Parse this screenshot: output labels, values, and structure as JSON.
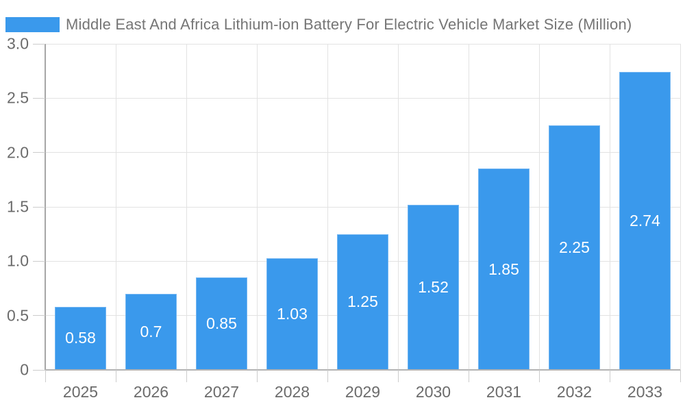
{
  "chart_data": {
    "type": "bar",
    "title": "Middle East And Africa Lithium-ion Battery For Electric Vehicle Market Size (Million)",
    "categories": [
      "2025",
      "2026",
      "2027",
      "2028",
      "2029",
      "2030",
      "2031",
      "2032",
      "2033"
    ],
    "values": [
      0.58,
      0.7,
      0.85,
      1.03,
      1.25,
      1.52,
      1.85,
      2.25,
      2.74
    ],
    "bar_labels": [
      "0.58",
      "0.7",
      "0.85",
      "1.03",
      "1.25",
      "1.52",
      "1.85",
      "2.25",
      "2.74"
    ],
    "xlabel": "",
    "ylabel": "",
    "ylim": [
      0,
      3
    ],
    "yticks": [
      0,
      0.5,
      1,
      1.5,
      2,
      2.5,
      3
    ],
    "ytick_labels": [
      "0",
      "0.5",
      "1.0",
      "1.5",
      "2.0",
      "2.5",
      "3.0"
    ],
    "grid": true,
    "legend_position": "top-left",
    "colors": {
      "bar": "#3a99ec",
      "title_text": "#757575",
      "axis_text": "#6b6b6b",
      "bar_label_text": "#ffffff",
      "gridline": "#e2e2e2",
      "y_axis_line": "#a6a6a6",
      "x_axis_line": "#b3b3b3",
      "tick": "#cccccc"
    }
  }
}
